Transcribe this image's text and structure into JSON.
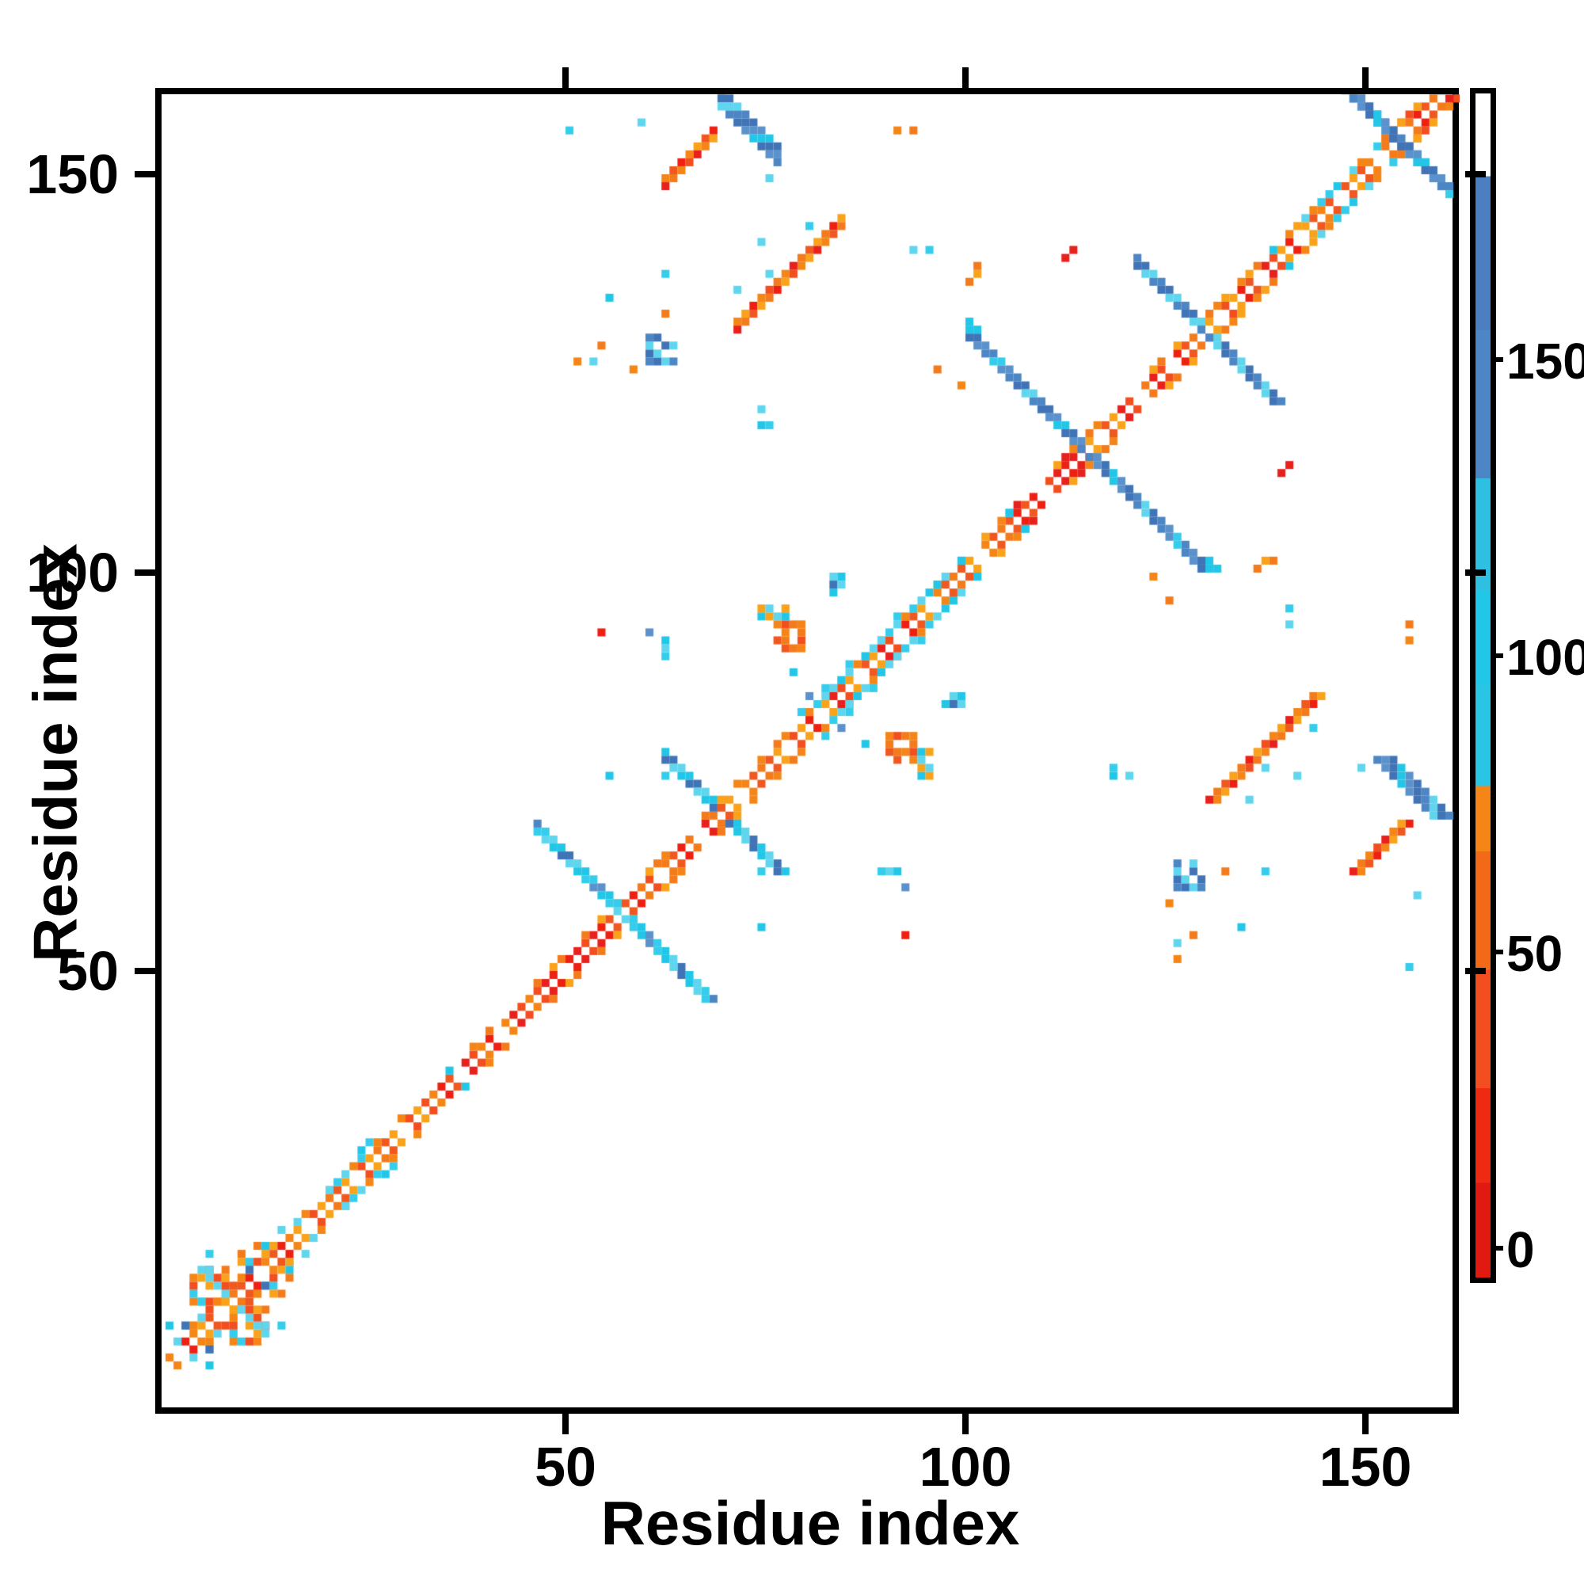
{
  "chart_data": {
    "type": "heatmap",
    "subtype": "protein-residue-contact-map",
    "title": "",
    "xlabel": "Residue index",
    "ylabel": "Residue index",
    "x_range": [
      0,
      162
    ],
    "y_range": [
      0,
      162
    ],
    "x_ticks": [
      50,
      100,
      150
    ],
    "y_ticks": [
      50,
      100,
      150
    ],
    "grid": false,
    "background": "#ffffff",
    "symmetric": true,
    "colorbar": {
      "ticks": [
        0,
        50,
        100,
        150
      ],
      "tick_fraction_per_unit": 0.005,
      "zero_fraction_from_bottom": 0.025,
      "stops_bottom_to_top": [
        {
          "from": 0.0,
          "to": 0.08,
          "color": "#e01a10"
        },
        {
          "from": 0.08,
          "to": 0.16,
          "color": "#ee2a12"
        },
        {
          "from": 0.16,
          "to": 0.26,
          "color": "#f34e1f"
        },
        {
          "from": 0.26,
          "to": 0.36,
          "color": "#f26a18"
        },
        {
          "from": 0.36,
          "to": 0.415,
          "color": "#f58516"
        },
        {
          "from": 0.415,
          "to": 0.5,
          "color": "#2ac4e4"
        },
        {
          "from": 0.5,
          "to": 0.58,
          "color": "#22c7e8"
        },
        {
          "from": 0.58,
          "to": 0.675,
          "color": "#2fbfe0"
        },
        {
          "from": 0.675,
          "to": 0.8,
          "color": "#4d86c4"
        },
        {
          "from": 0.8,
          "to": 0.93,
          "color": "#4b7fc0"
        },
        {
          "from": 0.93,
          "to": 1.0,
          "color": "#ffffff"
        }
      ]
    },
    "palette": {
      "red": [
        "#ee2012",
        "#e8211c"
      ],
      "orangered": [
        "#f34e1f",
        "#f0581f"
      ],
      "orange": [
        "#f58516",
        "#f9a21a",
        "#f47b1b"
      ],
      "cyan": [
        "#22c7e8",
        "#35cdec",
        "#5fd6ee"
      ],
      "steel": [
        "#4d86c4",
        "#4174b6",
        "#5b92cc"
      ]
    },
    "diagonal_segments": [
      {
        "from": 0,
        "to": 16,
        "main": [
          "orange",
          "orangered",
          "red",
          "orange"
        ],
        "skip": 5,
        "second": [
          "orange",
          "cyan",
          "orangered"
        ],
        "second_density": 0.75,
        "flank": [
          "cyan",
          "orange"
        ],
        "flank_density": 0.55,
        "flank_max_offset": 5
      },
      {
        "from": 16,
        "to": 32,
        "main": [
          "orangered",
          "orange",
          "orange"
        ],
        "skip": 6,
        "second": [
          "cyan",
          "cyan",
          "orange"
        ],
        "second_density": 0.6,
        "flank": [
          "cyan"
        ],
        "flank_density": 0.3,
        "flank_max_offset": 3
      },
      {
        "from": 32,
        "to": 46,
        "main": [
          "orange",
          "red",
          "orangered"
        ],
        "skip": 5,
        "second": [
          "orange",
          "cyan"
        ],
        "second_density": 0.45,
        "flank": [
          "cyan"
        ],
        "flank_density": 0.12,
        "flank_max_offset": 2
      },
      {
        "from": 46,
        "to": 56,
        "main": [
          "red",
          "orangered",
          "red"
        ],
        "skip": 7,
        "second": [
          "orange"
        ],
        "second_density": 0.5,
        "flank": [],
        "flank_density": 0.0,
        "flank_max_offset": 2
      },
      {
        "from": 56,
        "to": 70,
        "main": [
          "orangered",
          "red",
          "orange"
        ],
        "skip": 5,
        "second": [
          "orange"
        ],
        "second_density": 0.45,
        "flank": [
          "cyan"
        ],
        "flank_density": 0.08,
        "flank_max_offset": 2
      },
      {
        "from": 70,
        "to": 78,
        "main": [
          "orange",
          "orangered"
        ],
        "skip": 6,
        "second": [
          "orange"
        ],
        "second_density": 0.5,
        "flank": [],
        "flank_density": 0.0,
        "flank_max_offset": 2
      },
      {
        "from": 78,
        "to": 95,
        "main": [
          "orangered",
          "orange",
          "red"
        ],
        "skip": 5,
        "second": [
          "cyan",
          "cyan",
          "orange"
        ],
        "second_density": 0.7,
        "flank": [
          "cyan"
        ],
        "flank_density": 0.4,
        "flank_max_offset": 3
      },
      {
        "from": 95,
        "to": 106,
        "main": [
          "orange",
          "orangered"
        ],
        "skip": 6,
        "second": [
          "orange",
          "cyan"
        ],
        "second_density": 0.45,
        "flank": [
          "cyan"
        ],
        "flank_density": 0.1,
        "flank_max_offset": 2
      },
      {
        "from": 106,
        "to": 113,
        "main": [
          "red",
          "red",
          "orangered"
        ],
        "skip": 8,
        "second": [
          "red",
          "orange"
        ],
        "second_density": 0.35,
        "flank": [],
        "flank_density": 0.0,
        "flank_max_offset": 2
      },
      {
        "from": 113,
        "to": 122,
        "main": [
          "orangered",
          "orange",
          "red"
        ],
        "skip": 5,
        "second": [
          "orange"
        ],
        "second_density": 0.5,
        "flank": [],
        "flank_density": 0.0,
        "flank_max_offset": 2
      },
      {
        "from": 122,
        "to": 129,
        "main": [
          "red",
          "orangered",
          "orange"
        ],
        "skip": 6,
        "second": [
          "orange"
        ],
        "second_density": 0.45,
        "flank": [],
        "flank_density": 0.0,
        "flank_max_offset": 2
      },
      {
        "from": 129,
        "to": 141,
        "main": [
          "orangered",
          "orange",
          "red"
        ],
        "skip": 5,
        "second": [
          "orange"
        ],
        "second_density": 0.5,
        "flank": [
          "cyan"
        ],
        "flank_density": 0.06,
        "flank_max_offset": 2
      },
      {
        "from": 141,
        "to": 152,
        "main": [
          "orange",
          "orangered"
        ],
        "skip": 5,
        "second": [
          "cyan",
          "orange"
        ],
        "second_density": 0.6,
        "flank": [
          "cyan"
        ],
        "flank_density": 0.3,
        "flank_max_offset": 3
      },
      {
        "from": 152,
        "to": 161,
        "main": [
          "red",
          "orangered",
          "orange"
        ],
        "skip": 7,
        "second": [
          "orange",
          "orangered"
        ],
        "second_density": 0.65,
        "flank": [
          "orange"
        ],
        "flank_density": 0.25,
        "flank_max_offset": 3
      }
    ],
    "features": [
      {
        "type": "anti",
        "x": 46,
        "y": 68,
        "len": 11,
        "thick": 2,
        "colors": [
          "steel",
          "cyan",
          "cyan",
          "cyan"
        ],
        "note": "antiparallel hairpin arm of X at residue 57"
      },
      {
        "type": "anti",
        "x": 62,
        "y": 77,
        "len": 7,
        "thick": 2,
        "colors": [
          "cyan",
          "steel",
          "cyan"
        ],
        "note": "short antiparallel arm above X-57"
      },
      {
        "type": "anti",
        "x": 100,
        "y": 130,
        "len": 15,
        "thick": 2,
        "colors": [
          "cyan",
          "steel",
          "steel",
          "steel"
        ],
        "note": "antiparallel arm of X at residue 115"
      },
      {
        "type": "anti",
        "x": 121,
        "y": 139,
        "len": 9,
        "thick": 2,
        "colors": [
          "steel",
          "steel",
          "cyan"
        ],
        "note": "antiparallel arm of X at residue 130"
      },
      {
        "type": "anti",
        "x": 148,
        "y": 160,
        "len": 13,
        "thick": 2,
        "colors": [
          "steel",
          "cyan",
          "steel",
          "steel"
        ],
        "note": "antiparallel arm near C-terminal corner"
      },
      {
        "type": "para",
        "x": 62,
        "y": 149,
        "len": 7,
        "thick": 2,
        "colors": [
          "orange",
          "orangered",
          "red",
          "orange"
        ],
        "note": "left half of top arch cluster"
      },
      {
        "type": "anti",
        "x": 69,
        "y": 160,
        "len": 8,
        "thick": 3,
        "colors": [
          "steel",
          "steel",
          "cyan",
          "steel"
        ],
        "note": "right half of top arch cluster"
      },
      {
        "type": "para",
        "x": 71,
        "y": 131,
        "len": 14,
        "thick": 2,
        "colors": [
          "orange",
          "orange",
          "red",
          "orange",
          "orangered"
        ],
        "note": "parallel helix-packing streak"
      },
      {
        "type": "blob",
        "x": 76,
        "y": 90,
        "w": 4,
        "h": 4,
        "density": 0.85,
        "colors": [
          "orange",
          "orangered",
          "orange"
        ]
      },
      {
        "type": "blob",
        "x": 74,
        "y": 94,
        "w": 4,
        "h": 2,
        "density": 0.7,
        "colors": [
          "cyan",
          "orange",
          "cyan"
        ]
      },
      {
        "type": "blob",
        "x": 60,
        "y": 126,
        "w": 4,
        "h": 4,
        "density": 0.8,
        "colors": [
          "steel",
          "steel",
          "cyan"
        ]
      },
      {
        "type": "blob",
        "x": 83,
        "y": 97,
        "w": 3,
        "h": 3,
        "density": 0.8,
        "colors": [
          "cyan",
          "steel",
          "cyan"
        ]
      },
      {
        "type": "blob",
        "x": 3,
        "y": 8,
        "w": 5,
        "h": 5,
        "density": 0.55,
        "colors": [
          "orange",
          "cyan",
          "orangered",
          "orange"
        ],
        "note": "N-terminal dense cluster"
      }
    ],
    "dots": [
      {
        "x": 50,
        "y": 155,
        "c": "cyan"
      },
      {
        "x": 55,
        "y": 134,
        "c": "cyan"
      },
      {
        "x": 53,
        "y": 126,
        "c": "cyan"
      },
      {
        "x": 55,
        "y": 74,
        "c": "cyan"
      },
      {
        "x": 62,
        "y": 74,
        "c": "cyan"
      },
      {
        "x": 74,
        "y": 120,
        "c": "cyan"
      },
      {
        "x": 74,
        "y": 118,
        "c": "cyan"
      },
      {
        "x": 75,
        "y": 118,
        "c": "cyan"
      },
      {
        "x": 78,
        "y": 87,
        "c": "cyan"
      },
      {
        "x": 62,
        "y": 137,
        "c": "cyan"
      },
      {
        "x": 59,
        "y": 156,
        "c": "cyan"
      },
      {
        "x": 93,
        "y": 140,
        "c": "cyan"
      },
      {
        "x": 95,
        "y": 140,
        "c": "cyan"
      },
      {
        "x": 75,
        "y": 149,
        "c": "cyan"
      },
      {
        "x": 71,
        "y": 135,
        "c": "cyan"
      },
      {
        "x": 74,
        "y": 141,
        "c": "cyan"
      },
      {
        "x": 80,
        "y": 143,
        "c": "cyan"
      },
      {
        "x": 75,
        "y": 137,
        "c": "cyan"
      },
      {
        "x": 100,
        "y": 131,
        "c": "cyan"
      },
      {
        "x": 101,
        "y": 130,
        "c": "cyan"
      },
      {
        "x": 5,
        "y": 14,
        "c": "cyan"
      },
      {
        "x": 5,
        "y": 12,
        "c": "cyan"
      },
      {
        "x": 62,
        "y": 89,
        "c": "cyan"
      },
      {
        "x": 62,
        "y": 90,
        "c": "cyan"
      },
      {
        "x": 62,
        "y": 91,
        "c": "cyan"
      },
      {
        "x": 54,
        "y": 128,
        "c": "orange"
      },
      {
        "x": 51,
        "y": 126,
        "c": "orange"
      },
      {
        "x": 99,
        "y": 123,
        "c": "orange"
      },
      {
        "x": 58,
        "y": 125,
        "c": "orange"
      },
      {
        "x": 62,
        "y": 132,
        "c": "orange"
      },
      {
        "x": 91,
        "y": 155,
        "c": "orange"
      },
      {
        "x": 93,
        "y": 155,
        "c": "orange"
      },
      {
        "x": 100,
        "y": 136,
        "c": "orange"
      },
      {
        "x": 101,
        "y": 137,
        "c": "orange"
      },
      {
        "x": 101,
        "y": 138,
        "c": "orange"
      },
      {
        "x": 96,
        "y": 125,
        "c": "orange"
      },
      {
        "x": 9,
        "y": 13,
        "c": "orange"
      },
      {
        "x": 9,
        "y": 14,
        "c": "orange"
      },
      {
        "x": 54,
        "y": 92,
        "c": "red"
      },
      {
        "x": 112,
        "y": 139,
        "c": "red"
      },
      {
        "x": 113,
        "y": 140,
        "c": "red"
      },
      {
        "x": 60,
        "y": 92,
        "c": "steel"
      },
      {
        "x": 80,
        "y": 84,
        "c": "steel"
      },
      {
        "x": 10,
        "y": 12,
        "c": "steel"
      },
      {
        "x": 2,
        "y": 5,
        "c": "steel"
      }
    ]
  },
  "axes": {
    "x_title": "Residue index",
    "y_title": "Residue index",
    "x_tick_labels": [
      "50",
      "100",
      "150"
    ],
    "y_tick_labels": [
      "50",
      "100",
      "150"
    ],
    "colorbar_tick_labels": [
      "0",
      "50",
      "100",
      "150"
    ]
  },
  "style_colors": {
    "axis": "#000000",
    "plot_background": "#ffffff"
  }
}
